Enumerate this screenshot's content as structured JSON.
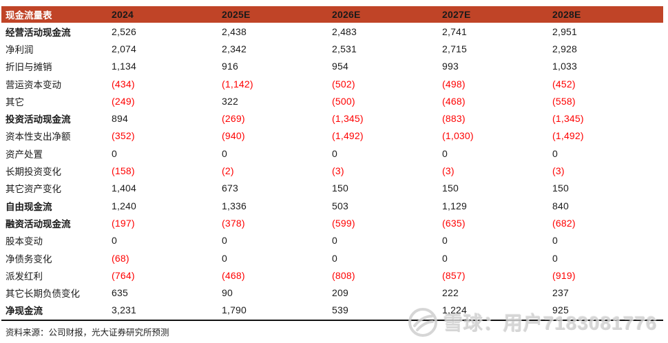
{
  "table": {
    "title": "现金流量表",
    "columns": [
      "2024",
      "2025E",
      "2026E",
      "2027E",
      "2028E"
    ],
    "rows": [
      {
        "label": "经营活动现金流",
        "bold": true,
        "values": [
          "2,526",
          "2,438",
          "2,483",
          "2,741",
          "2,951"
        ]
      },
      {
        "label": "净利润",
        "bold": false,
        "values": [
          "2,074",
          "2,342",
          "2,531",
          "2,715",
          "2,928"
        ]
      },
      {
        "label": "折旧与摊销",
        "bold": false,
        "values": [
          "1,134",
          "916",
          "954",
          "993",
          "1,033"
        ]
      },
      {
        "label": "营运资本变动",
        "bold": false,
        "values": [
          "(434)",
          "(1,142)",
          "(502)",
          "(498)",
          "(452)"
        ]
      },
      {
        "label": "其它",
        "bold": false,
        "values": [
          "(249)",
          "322",
          "(500)",
          "(468)",
          "(558)"
        ]
      },
      {
        "label": "投资活动现金流",
        "bold": true,
        "values": [
          "894",
          "(269)",
          "(1,345)",
          "(883)",
          "(1,345)"
        ]
      },
      {
        "label": "资本性支出净额",
        "bold": false,
        "values": [
          "(352)",
          "(940)",
          "(1,492)",
          "(1,030)",
          "(1,492)"
        ]
      },
      {
        "label": "资产处置",
        "bold": false,
        "values": [
          "0",
          "0",
          "0",
          "0",
          "0"
        ]
      },
      {
        "label": "长期投资变化",
        "bold": false,
        "values": [
          "(158)",
          "(2)",
          "(3)",
          "(3)",
          "(3)"
        ]
      },
      {
        "label": "其它资产变化",
        "bold": false,
        "values": [
          "1,404",
          "673",
          "150",
          "150",
          "150"
        ]
      },
      {
        "label": "自由现金流",
        "bold": true,
        "values": [
          "1,240",
          "1,336",
          "503",
          "1,129",
          "840"
        ]
      },
      {
        "label": "融资活动现金流",
        "bold": true,
        "values": [
          "(197)",
          "(378)",
          "(599)",
          "(635)",
          "(682)"
        ]
      },
      {
        "label": "股本变动",
        "bold": false,
        "values": [
          "0",
          "0",
          "0",
          "0",
          "0"
        ]
      },
      {
        "label": "净债务变化",
        "bold": false,
        "values": [
          "(68)",
          "0",
          "0",
          "0",
          "0"
        ]
      },
      {
        "label": "派发红利",
        "bold": false,
        "values": [
          "(764)",
          "(468)",
          "(808)",
          "(857)",
          "(919)"
        ]
      },
      {
        "label": "其它长期负债变化",
        "bold": false,
        "values": [
          "635",
          "90",
          "209",
          "222",
          "237"
        ]
      },
      {
        "label": "净现金流",
        "bold": true,
        "values": [
          "3,231",
          "1,790",
          "539",
          "1,224",
          "925"
        ]
      }
    ]
  },
  "footer": {
    "source_note": "资料来源：公司财报，光大证券研究所预测"
  },
  "watermark": {
    "text": "雪球：用户7183081776",
    "logo": "xueqiu-snowball-icon"
  },
  "colors": {
    "header_bg": "#C04427",
    "negative": "#FE0000",
    "text": "#1A1A1A",
    "watermark": "#CFCFCF"
  }
}
